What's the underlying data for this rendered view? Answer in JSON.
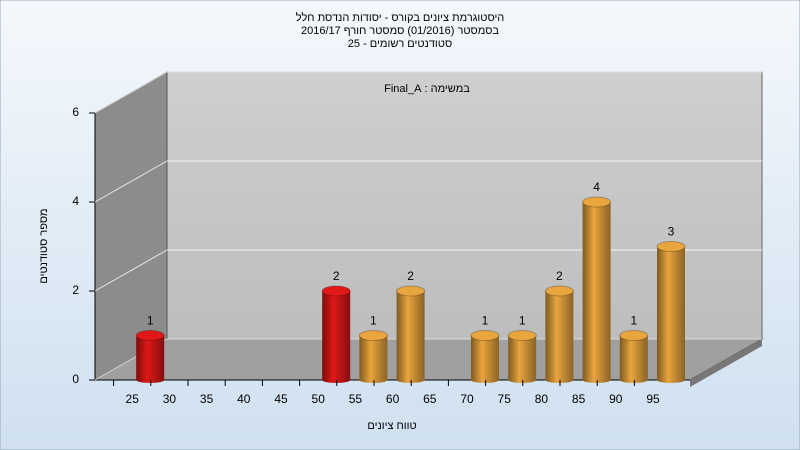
{
  "chart_data": {
    "type": "bar",
    "title": [
      "היסטוגרמת ציונים בקורס - יסודות הנדסת חלל",
      "בסמסטר (01/2016) סמסטר חורף 2016/17",
      "סטודנטים רשומים - 25"
    ],
    "subtitle": "במשימה : Final_A",
    "x_label": "טווח ציונים",
    "y_label": "מספר סטודנטים",
    "categories": [
      "25",
      "30",
      "35",
      "40",
      "45",
      "50",
      "55",
      "60",
      "65",
      "70",
      "75",
      "80",
      "85",
      "90",
      "95"
    ],
    "values": [
      1,
      0,
      0,
      0,
      0,
      2,
      1,
      2,
      0,
      1,
      1,
      2,
      4,
      1,
      3
    ],
    "colors": [
      "#e01818",
      "#e9a53e",
      "#e9a53e",
      "#e9a53e",
      "#e9a53e",
      "#e01818",
      "#e9a53e",
      "#e9a53e",
      "#e9a53e",
      "#e9a53e",
      "#e9a53e",
      "#e9a53e",
      "#e9a53e",
      "#e9a53e",
      "#e9a53e"
    ],
    "ylim": [
      0,
      6
    ],
    "yticks": [
      0,
      2,
      4,
      6
    ],
    "grid": true
  }
}
